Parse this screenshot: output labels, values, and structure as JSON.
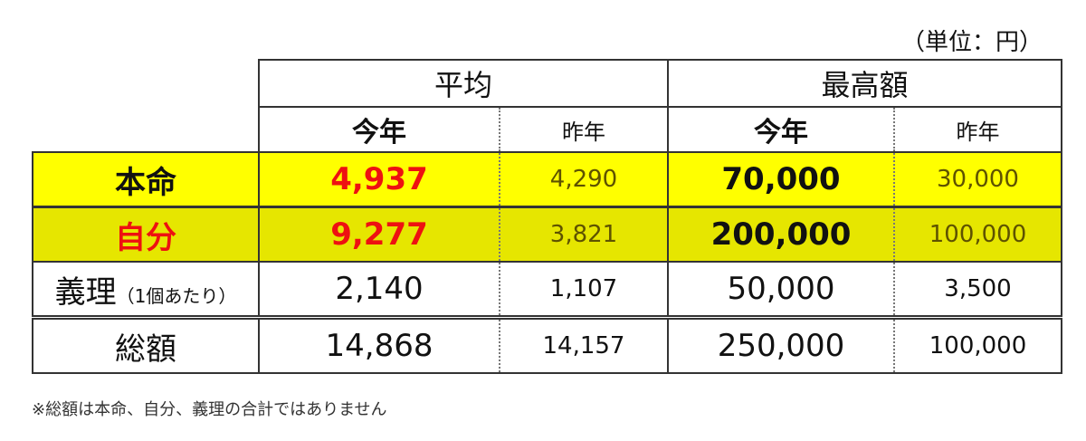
{
  "unit": "（単位：円）",
  "table": {
    "groups": [
      "平均",
      "最高額"
    ],
    "subheaders": [
      "今年",
      "昨年",
      "今年",
      "昨年"
    ],
    "rows": [
      {
        "label": "本命",
        "cells": [
          "4,937",
          "4,290",
          "70,000",
          "30,000"
        ]
      },
      {
        "label": "自分",
        "cells": [
          "9,277",
          "3,821",
          "200,000",
          "100,000"
        ]
      },
      {
        "label": "義理",
        "note": "（1個あたり）",
        "cells": [
          "2,140",
          "1,107",
          "50,000",
          "3,500"
        ]
      },
      {
        "label": "総額",
        "cells": [
          "14,868",
          "14,157",
          "250,000",
          "100,000"
        ]
      }
    ]
  },
  "footnote": "※総額は本命、自分、義理の合計ではありません"
}
